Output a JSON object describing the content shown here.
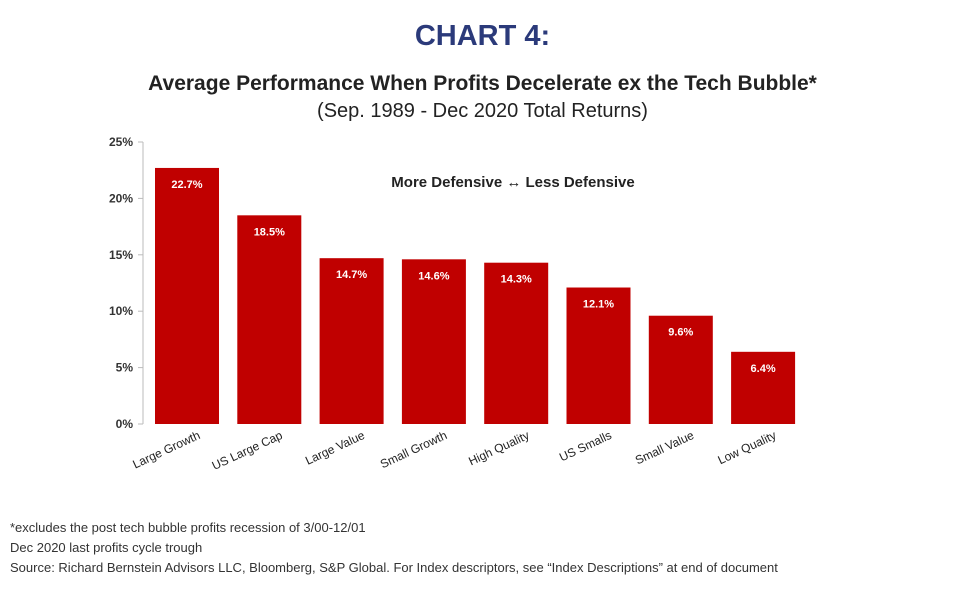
{
  "title": "CHART 4:",
  "subtitle": "Average Performance When Profits Decelerate ex the Tech Bubble*",
  "period": "(Sep. 1989 - Dec 2020 Total Returns)",
  "annotation": "More Defensive ↔ Less Defensive",
  "chart_data": {
    "type": "bar",
    "categories": [
      "Large Growth",
      "US Large Cap",
      "Large Value",
      "Small Growth",
      "High Quality",
      "US Smalls",
      "Small Value",
      "Low Quality"
    ],
    "values": [
      22.7,
      18.5,
      14.7,
      14.6,
      14.3,
      12.1,
      9.6,
      6.4
    ],
    "data_labels": [
      "22.7%",
      "18.5%",
      "14.7%",
      "14.6%",
      "14.3%",
      "12.1%",
      "9.6%",
      "6.4%"
    ],
    "ylim": [
      0,
      25
    ],
    "yticks": [
      0,
      5,
      10,
      15,
      20,
      25
    ],
    "ytick_labels": [
      "0%",
      "5%",
      "10%",
      "15%",
      "20%",
      "25%"
    ],
    "bar_color": "#c00000",
    "label_color": "#ffffff",
    "grid": false,
    "legend": "none"
  },
  "footnotes": {
    "note1": "*excludes the post tech bubble profits recession of 3/00-12/01",
    "note2": "Dec 2020 last profits cycle trough",
    "source": "Source: Richard Bernstein Advisors LLC, Bloomberg, S&P Global. For Index descriptors, see “Index Descriptions” at end of document"
  }
}
